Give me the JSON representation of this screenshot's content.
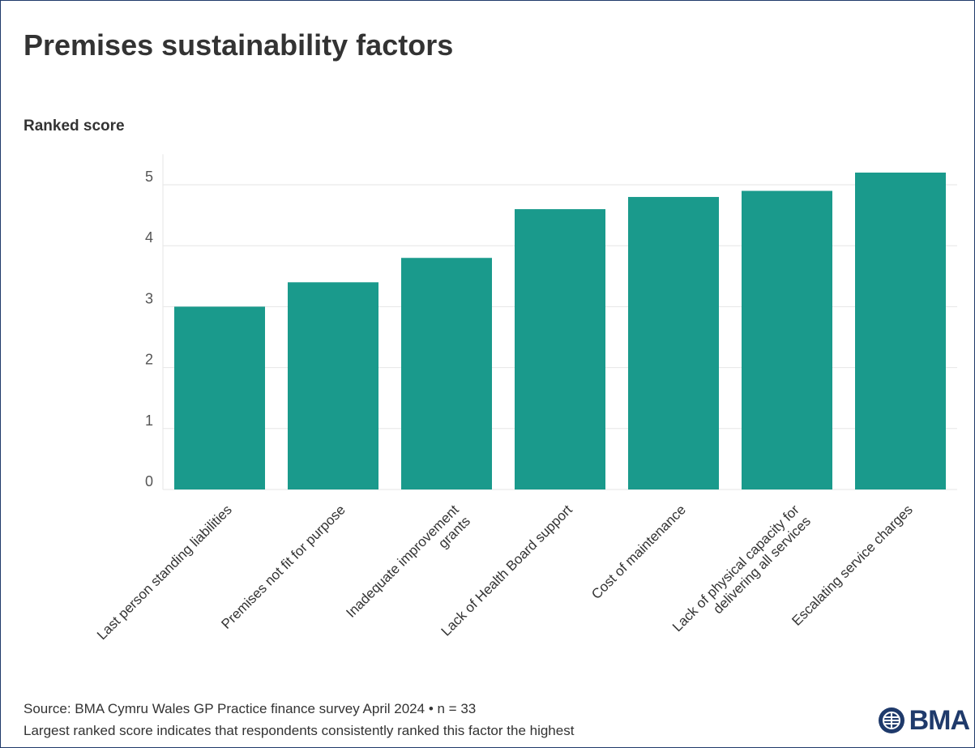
{
  "title": "Premises sustainability factors",
  "ylabel": "Ranked score",
  "footer": {
    "source": "Source: BMA Cymru Wales GP Practice finance survey April 2024 • n = 33",
    "note": "Largest ranked score indicates that respondents consistently ranked this factor the highest"
  },
  "logo": {
    "text": "BMA",
    "icon": "bma-logo-icon"
  },
  "colors": {
    "bar": "#1a9a8c",
    "grid": "#e6e6e6",
    "text": "#333333",
    "frame": "#1f3a6b"
  },
  "chart_data": {
    "type": "bar",
    "categories": [
      [
        "Last person standing liabilities"
      ],
      [
        "Premises not fit for purpose"
      ],
      [
        "Inadequate improvement",
        "grants"
      ],
      [
        "Lack of Health Board support"
      ],
      [
        "Cost of maintenance"
      ],
      [
        "Lack of physical capacity for",
        "delivering all services"
      ],
      [
        "Escalating service charges"
      ]
    ],
    "values": [
      3.0,
      3.4,
      3.8,
      4.6,
      4.8,
      4.9,
      5.2
    ],
    "ylim": [
      0,
      5.5
    ],
    "yticks": [
      "0",
      "1",
      "2",
      "3",
      "4",
      "5"
    ],
    "grid": true
  }
}
